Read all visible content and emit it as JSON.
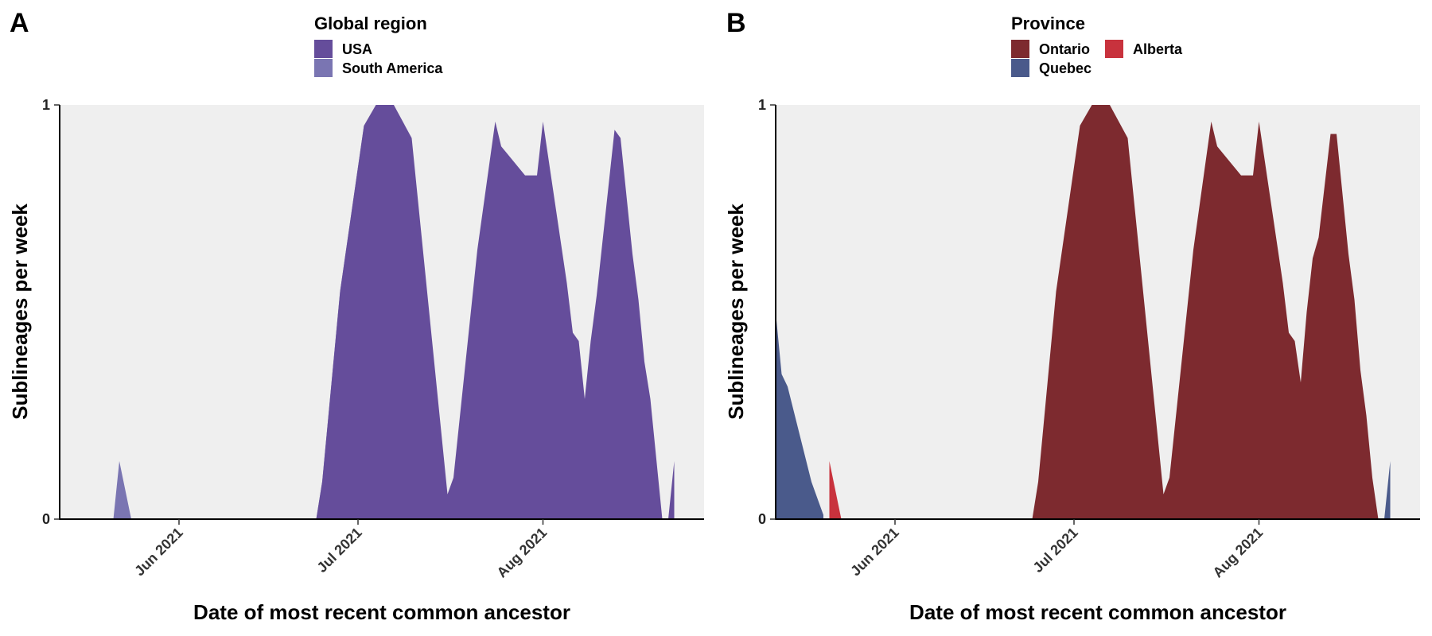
{
  "chart_data": [
    {
      "panel": "A",
      "type": "area",
      "stacked": true,
      "legend": {
        "title": "Global region",
        "position": "top"
      },
      "xlabel": "Date of most recent common ancestor",
      "ylabel": "Sublineages per week",
      "x_domain": [
        "2021-05-12",
        "2021-08-28"
      ],
      "xticks": [
        {
          "date": "2021-06-01",
          "label": "Jun 2021"
        },
        {
          "date": "2021-07-01",
          "label": "Jul 2021"
        },
        {
          "date": "2021-08-01",
          "label": "Aug 2021"
        }
      ],
      "yticks": [
        0,
        1
      ],
      "ylim": [
        0,
        1
      ],
      "background": "#efefef",
      "series": [
        {
          "name": "South America",
          "color": "#7a75b2",
          "points": [
            [
              "2021-05-21",
              0
            ],
            [
              "2021-05-22",
              0.14
            ],
            [
              "2021-05-24",
              0
            ],
            [
              "2021-06-24",
              0
            ],
            [
              "2021-06-25",
              0.09
            ],
            [
              "2021-06-28",
              0.55
            ],
            [
              "2021-07-02",
              0.95
            ],
            [
              "2021-07-03",
              0.91
            ],
            [
              "2021-07-06",
              0.5
            ],
            [
              "2021-07-09",
              0.05
            ],
            [
              "2021-07-10",
              0
            ]
          ]
        },
        {
          "name": "USA",
          "color": "#654d9b",
          "points": [
            [
              "2021-06-24",
              0
            ],
            [
              "2021-06-25",
              0.09
            ],
            [
              "2021-06-28",
              0.55
            ],
            [
              "2021-07-02",
              0.95
            ],
            [
              "2021-07-04",
              1.0
            ],
            [
              "2021-07-07",
              1.0
            ],
            [
              "2021-07-10",
              0.92
            ],
            [
              "2021-07-16",
              0.06
            ],
            [
              "2021-07-17",
              0.1
            ],
            [
              "2021-07-21",
              0.65
            ],
            [
              "2021-07-24",
              0.96
            ],
            [
              "2021-07-25",
              0.9
            ],
            [
              "2021-07-29",
              0.83
            ],
            [
              "2021-07-31",
              0.83
            ],
            [
              "2021-08-01",
              0.96
            ],
            [
              "2021-08-05",
              0.57
            ],
            [
              "2021-08-06",
              0.45
            ],
            [
              "2021-08-07",
              0.43
            ],
            [
              "2021-08-08",
              0.29
            ],
            [
              "2021-08-09",
              0.43
            ],
            [
              "2021-08-10",
              0.54
            ],
            [
              "2021-08-13",
              0.94
            ],
            [
              "2021-08-14",
              0.92
            ],
            [
              "2021-08-16",
              0.64
            ],
            [
              "2021-08-17",
              0.53
            ],
            [
              "2021-08-18",
              0.38
            ],
            [
              "2021-08-19",
              0.29
            ],
            [
              "2021-08-21",
              0
            ],
            [
              "2021-08-22",
              0
            ],
            [
              "2021-08-23",
              0.14
            ],
            [
              "2021-08-23",
              0
            ]
          ]
        }
      ]
    },
    {
      "panel": "B",
      "type": "area",
      "stacked": true,
      "legend": {
        "title": "Province",
        "position": "top"
      },
      "xlabel": "Date of most recent common ancestor",
      "ylabel": "Sublineages per week",
      "x_domain": [
        "2021-05-12",
        "2021-08-28"
      ],
      "xticks": [
        {
          "date": "2021-06-01",
          "label": "Jun 2021"
        },
        {
          "date": "2021-07-01",
          "label": "Jul 2021"
        },
        {
          "date": "2021-08-01",
          "label": "Aug 2021"
        }
      ],
      "yticks": [
        0,
        1
      ],
      "ylim": [
        0,
        1
      ],
      "background": "#efefef",
      "series": [
        {
          "name": "Quebec",
          "color": "#4a5a8b",
          "points": [
            [
              "2021-05-12",
              0.5
            ],
            [
              "2021-05-13",
              0.35
            ],
            [
              "2021-05-14",
              0.32
            ],
            [
              "2021-05-18",
              0.09
            ],
            [
              "2021-05-20",
              0.01
            ],
            [
              "2021-05-20",
              0
            ],
            [
              "2021-07-31",
              0
            ],
            [
              "2021-08-01",
              0.01
            ],
            [
              "2021-08-07",
              0.1
            ],
            [
              "2021-08-08",
              0
            ],
            [
              "2021-08-09",
              0.01
            ],
            [
              "2021-08-10",
              0
            ],
            [
              "2021-08-11",
              0
            ],
            [
              "2021-08-12",
              0.02
            ],
            [
              "2021-08-13",
              0
            ],
            [
              "2021-08-15",
              0
            ],
            [
              "2021-08-16",
              0.04
            ],
            [
              "2021-08-17",
              0
            ],
            [
              "2021-08-18",
              0.06
            ],
            [
              "2021-08-19",
              0.09
            ],
            [
              "2021-08-20",
              0
            ],
            [
              "2021-08-22",
              0
            ],
            [
              "2021-08-23",
              0.14
            ],
            [
              "2021-08-23",
              0
            ]
          ]
        },
        {
          "name": "Alberta",
          "color": "#c8323d",
          "points": [
            [
              "2021-05-21",
              0
            ],
            [
              "2021-05-21",
              0.14
            ],
            [
              "2021-05-23",
              0
            ]
          ]
        },
        {
          "name": "Ontario",
          "color": "#7d2a2f",
          "points": [
            [
              "2021-06-24",
              0
            ],
            [
              "2021-06-25",
              0.09
            ],
            [
              "2021-06-28",
              0.55
            ],
            [
              "2021-07-02",
              0.95
            ],
            [
              "2021-07-04",
              1.0
            ],
            [
              "2021-07-07",
              1.0
            ],
            [
              "2021-07-10",
              0.92
            ],
            [
              "2021-07-16",
              0.06
            ],
            [
              "2021-07-17",
              0.1
            ],
            [
              "2021-07-21",
              0.65
            ],
            [
              "2021-07-24",
              0.96
            ],
            [
              "2021-07-25",
              0.9
            ],
            [
              "2021-07-29",
              0.83
            ],
            [
              "2021-07-31",
              0.83
            ],
            [
              "2021-08-01",
              0.96
            ],
            [
              "2021-08-05",
              0.57
            ],
            [
              "2021-08-06",
              0.45
            ],
            [
              "2021-08-07",
              0.43
            ],
            [
              "2021-08-08",
              0.33
            ],
            [
              "2021-08-09",
              0.5
            ],
            [
              "2021-08-10",
              0.63
            ],
            [
              "2021-08-11",
              0.68
            ],
            [
              "2021-08-13",
              0.93
            ],
            [
              "2021-08-14",
              0.93
            ],
            [
              "2021-08-16",
              0.64
            ],
            [
              "2021-08-17",
              0.53
            ],
            [
              "2021-08-18",
              0.36
            ],
            [
              "2021-08-19",
              0.25
            ],
            [
              "2021-08-20",
              0.1
            ],
            [
              "2021-08-21",
              0
            ]
          ]
        }
      ],
      "legend_order": [
        "Ontario",
        "Alberta",
        "Quebec"
      ]
    }
  ]
}
